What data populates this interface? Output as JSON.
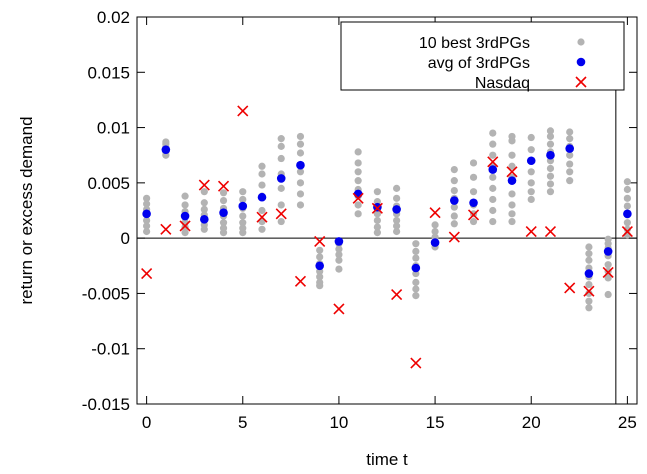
{
  "chart_data": {
    "type": "scatter",
    "xlabel": "time t",
    "ylabel": "return or excess demand",
    "xlim": [
      -0.5,
      25.5
    ],
    "ylim": [
      -0.015,
      0.02
    ],
    "xticks": [
      0,
      5,
      10,
      15,
      20,
      25
    ],
    "yticks": [
      -0.015,
      -0.01,
      -0.005,
      0,
      0.005,
      0.01,
      0.015,
      0.02
    ],
    "ytick_labels": [
      "-0.015",
      "-0.01",
      "-0.005",
      "0",
      "0.005",
      "0.01",
      "0.015",
      "0.02"
    ],
    "xtick_labels": [
      "0",
      "5",
      "10",
      "15",
      "20",
      "25"
    ],
    "zero_line": true,
    "vertical_line_x": 24.4,
    "grid": false,
    "legend_position": "top-right",
    "series": [
      {
        "name": "10 best 3rdPGs",
        "marker": "circle",
        "color": "#b3b3b3",
        "points": [
          [
            0,
            0.0036
          ],
          [
            0,
            0.0031
          ],
          [
            0,
            0.0026
          ],
          [
            0,
            0.0021
          ],
          [
            0,
            0.0016
          ],
          [
            0,
            0.0011
          ],
          [
            0,
            0.0006
          ],
          [
            1,
            0.0087
          ],
          [
            1,
            0.0085
          ],
          [
            1,
            0.0082
          ],
          [
            1,
            0.0078
          ],
          [
            1,
            0.0075
          ],
          [
            2,
            0.0038
          ],
          [
            2,
            0.003
          ],
          [
            2,
            0.0024
          ],
          [
            2,
            0.0019
          ],
          [
            2,
            0.0014
          ],
          [
            2,
            0.001
          ],
          [
            2,
            0.0005
          ],
          [
            3,
            0.0042
          ],
          [
            3,
            0.0032
          ],
          [
            3,
            0.0026
          ],
          [
            3,
            0.0021
          ],
          [
            3,
            0.0016
          ],
          [
            3,
            0.0012
          ],
          [
            3,
            0.0008
          ],
          [
            4,
            0.0041
          ],
          [
            4,
            0.0034
          ],
          [
            4,
            0.0027
          ],
          [
            4,
            0.002
          ],
          [
            4,
            0.0014
          ],
          [
            4,
            0.0009
          ],
          [
            4,
            0.0005
          ],
          [
            5,
            0.0042
          ],
          [
            5,
            0.0035
          ],
          [
            5,
            0.0027
          ],
          [
            5,
            0.002
          ],
          [
            5,
            0.0014
          ],
          [
            5,
            0.0009
          ],
          [
            5,
            0.0005
          ],
          [
            6,
            0.0065
          ],
          [
            6,
            0.0058
          ],
          [
            6,
            0.0048
          ],
          [
            6,
            0.0038
          ],
          [
            6,
            0.0025
          ],
          [
            6,
            0.0015
          ],
          [
            6,
            0.0008
          ],
          [
            7,
            0.009
          ],
          [
            7,
            0.0083
          ],
          [
            7,
            0.0072
          ],
          [
            7,
            0.0058
          ],
          [
            7,
            0.0045
          ],
          [
            7,
            0.003
          ],
          [
            7,
            0.0015
          ],
          [
            8,
            0.0092
          ],
          [
            8,
            0.0085
          ],
          [
            8,
            0.0077
          ],
          [
            8,
            0.006
          ],
          [
            8,
            0.005
          ],
          [
            8,
            0.004
          ],
          [
            8,
            0.003
          ],
          [
            9,
            -0.0011
          ],
          [
            9,
            -0.0017
          ],
          [
            9,
            -0.0023
          ],
          [
            9,
            -0.003
          ],
          [
            9,
            -0.0035
          ],
          [
            9,
            -0.004
          ],
          [
            9,
            -0.0043
          ],
          [
            10,
            -0.0005
          ],
          [
            10,
            -0.001
          ],
          [
            10,
            -0.0015
          ],
          [
            10,
            -0.002
          ],
          [
            10,
            -0.0028
          ],
          [
            11,
            0.0078
          ],
          [
            11,
            0.0068
          ],
          [
            11,
            0.006
          ],
          [
            11,
            0.0052
          ],
          [
            11,
            0.0044
          ],
          [
            11,
            0.0038
          ],
          [
            11,
            0.003
          ],
          [
            11,
            0.0022
          ],
          [
            12,
            0.0042
          ],
          [
            12,
            0.0033
          ],
          [
            12,
            0.0027
          ],
          [
            12,
            0.0022
          ],
          [
            12,
            0.0016
          ],
          [
            12,
            0.001
          ],
          [
            12,
            0.0005
          ],
          [
            13,
            0.0045
          ],
          [
            13,
            0.0036
          ],
          [
            13,
            0.0029
          ],
          [
            13,
            0.0022
          ],
          [
            13,
            0.0016
          ],
          [
            13,
            0.0011
          ],
          [
            13,
            0.0006
          ],
          [
            14,
            -0.0005
          ],
          [
            14,
            -0.0012
          ],
          [
            14,
            -0.0018
          ],
          [
            14,
            -0.0025
          ],
          [
            14,
            -0.0032
          ],
          [
            14,
            -0.004
          ],
          [
            14,
            -0.0046
          ],
          [
            14,
            -0.0052
          ],
          [
            15,
            0.0012
          ],
          [
            15,
            0.0006
          ],
          [
            15,
            0.0001
          ],
          [
            15,
            -0.0003
          ],
          [
            15,
            -0.0008
          ],
          [
            16,
            0.0062
          ],
          [
            16,
            0.0052
          ],
          [
            16,
            0.0043
          ],
          [
            16,
            0.0036
          ],
          [
            16,
            0.0028
          ],
          [
            16,
            0.002
          ],
          [
            16,
            0.0013
          ],
          [
            17,
            0.0068
          ],
          [
            17,
            0.0055
          ],
          [
            17,
            0.0042
          ],
          [
            17,
            0.003
          ],
          [
            17,
            0.0022
          ],
          [
            17,
            0.0015
          ],
          [
            18,
            0.0095
          ],
          [
            18,
            0.0085
          ],
          [
            18,
            0.0075
          ],
          [
            18,
            0.0065
          ],
          [
            18,
            0.0055
          ],
          [
            18,
            0.0045
          ],
          [
            18,
            0.0035
          ],
          [
            18,
            0.0025
          ],
          [
            18,
            0.0015
          ],
          [
            19,
            0.0092
          ],
          [
            19,
            0.0088
          ],
          [
            19,
            0.0075
          ],
          [
            19,
            0.0065
          ],
          [
            19,
            0.0055
          ],
          [
            19,
            0.004
          ],
          [
            19,
            0.003
          ],
          [
            19,
            0.0022
          ],
          [
            19,
            0.0015
          ],
          [
            20,
            0.0091
          ],
          [
            20,
            0.008
          ],
          [
            20,
            0.007
          ],
          [
            20,
            0.006
          ],
          [
            20,
            0.005
          ],
          [
            20,
            0.0042
          ],
          [
            20,
            0.0035
          ],
          [
            21,
            0.0097
          ],
          [
            21,
            0.0092
          ],
          [
            21,
            0.0085
          ],
          [
            21,
            0.0078
          ],
          [
            21,
            0.007
          ],
          [
            21,
            0.0063
          ],
          [
            21,
            0.0056
          ],
          [
            21,
            0.0049
          ],
          [
            21,
            0.0042
          ],
          [
            22,
            0.0096
          ],
          [
            22,
            0.009
          ],
          [
            22,
            0.0083
          ],
          [
            22,
            0.0075
          ],
          [
            22,
            0.0067
          ],
          [
            22,
            0.006
          ],
          [
            22,
            0.0052
          ],
          [
            23,
            -0.0008
          ],
          [
            23,
            -0.0014
          ],
          [
            23,
            -0.002
          ],
          [
            23,
            -0.0027
          ],
          [
            23,
            -0.0035
          ],
          [
            23,
            -0.0042
          ],
          [
            23,
            -0.005
          ],
          [
            23,
            -0.0057
          ],
          [
            23,
            -0.0063
          ],
          [
            24,
            -0.0001
          ],
          [
            24,
            -0.0005
          ],
          [
            24,
            -0.0009
          ],
          [
            24,
            -0.0013
          ],
          [
            24,
            -0.0016
          ],
          [
            24,
            -0.0024
          ],
          [
            24,
            -0.003
          ],
          [
            24,
            -0.0036
          ],
          [
            24,
            -0.0051
          ],
          [
            25,
            0.0051
          ],
          [
            25,
            0.0044
          ],
          [
            25,
            0.0036
          ],
          [
            25,
            0.0029
          ],
          [
            25,
            0.0021
          ],
          [
            25,
            0.0014
          ],
          [
            25,
            0.0008
          ],
          [
            25,
            0.0003
          ]
        ]
      },
      {
        "name": "avg of 3rdPGs",
        "marker": "circle",
        "color": "#0000ee",
        "x": [
          0,
          1,
          2,
          3,
          4,
          5,
          6,
          7,
          8,
          9,
          10,
          11,
          12,
          13,
          14,
          15,
          16,
          17,
          18,
          19,
          20,
          21,
          22,
          23,
          24,
          25
        ],
        "values": [
          0.0022,
          0.008,
          0.002,
          0.0017,
          0.0023,
          0.0029,
          0.0037,
          0.0054,
          0.0066,
          -0.0025,
          -0.0003,
          0.004,
          0.0028,
          0.0026,
          -0.0027,
          -0.0004,
          0.0034,
          0.0032,
          0.0062,
          0.0052,
          0.007,
          0.0075,
          0.0081,
          -0.0032,
          -0.0012,
          0.0022
        ]
      },
      {
        "name": "Nasdaq",
        "marker": "x",
        "color": "#ee0000",
        "x": [
          0,
          1,
          2,
          3,
          4,
          5,
          6,
          7,
          8,
          9,
          10,
          11,
          12,
          13,
          14,
          15,
          16,
          17,
          18,
          19,
          20,
          21,
          22,
          23,
          24,
          25
        ],
        "values": [
          -0.0032,
          0.0008,
          0.0011,
          0.0048,
          0.0047,
          0.0115,
          0.0019,
          0.0022,
          -0.0039,
          -0.0003,
          -0.0064,
          0.0036,
          0.0027,
          -0.0051,
          -0.0113,
          0.0023,
          0.0001,
          0.0021,
          0.0069,
          0.006,
          0.0006,
          0.0006,
          -0.0045,
          -0.0048,
          -0.0031,
          0.0006
        ]
      }
    ]
  }
}
